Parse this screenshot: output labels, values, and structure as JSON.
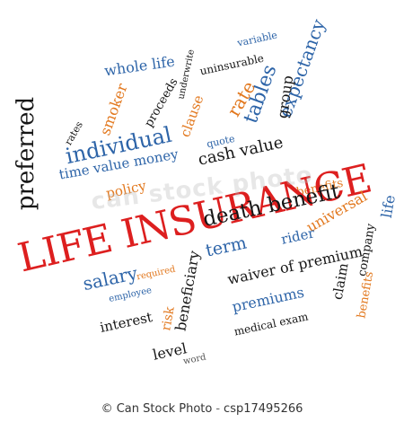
{
  "words": {
    "main_title": "LIFE INSURANCE",
    "preferred": "preferred",
    "whole_life": "whole life",
    "smoker": "smoker",
    "proceeds": "proceeds",
    "underwrite": "underwrite",
    "uninsurable": "uninsurable",
    "variable": "variable",
    "expectancy": "expectancy",
    "group": "group",
    "tables": "tables",
    "rate": "rate",
    "clause": "clause",
    "rates": "rates",
    "individual": "individual",
    "time_value_money": "time value money",
    "quote": "quote",
    "cash_value": "cash value",
    "policy": "policy",
    "benefits_top": "benefits",
    "death_benefit": "death benefit",
    "universal": "universal",
    "life": "life",
    "rider": "rider",
    "term": "term",
    "company": "company",
    "waiver_of_premium": "waiver of premium",
    "salary": "salary",
    "required": "required",
    "beneficiary": "beneficiary",
    "employee": "employee",
    "premiums": "premiums",
    "claim": "claim",
    "benefits_bottom": "benefits",
    "interest": "interest",
    "risk": "risk",
    "medical_exam": "medical exam",
    "level": "level",
    "word": "word"
  },
  "watermark": {
    "text": "can stock photo"
  },
  "footer": {
    "copyright": "© Can Stock Photo",
    "separator": "-",
    "image_id": "csp17495266"
  }
}
